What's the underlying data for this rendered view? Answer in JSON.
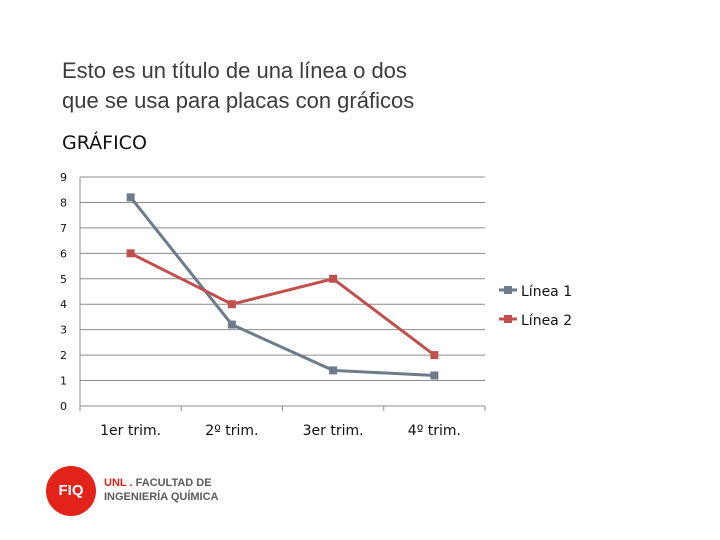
{
  "slide": {
    "title_line1": "Esto es un título de una línea o dos",
    "title_line2": "que se usa para placas con gráficos"
  },
  "chart_data": {
    "type": "line",
    "title": "GRÁFICO",
    "categories": [
      "1er trim.",
      "2º trim.",
      "3er trim.",
      "4º trim."
    ],
    "series": [
      {
        "name": "Línea 1",
        "values": [
          8.2,
          3.2,
          1.4,
          1.2
        ],
        "color": "#6d7b8a"
      },
      {
        "name": "Línea 2",
        "values": [
          6,
          4,
          5,
          2
        ],
        "color": "#c0504d"
      }
    ],
    "ylim": [
      0,
      9
    ],
    "yticks": [
      "0",
      "1",
      "2",
      "3",
      "4",
      "5",
      "6",
      "7",
      "8",
      "9"
    ],
    "grid": true,
    "legend": "right",
    "xlabel": "",
    "ylabel": ""
  },
  "logo": {
    "badge": "FIQ",
    "unl": "UNL",
    "line1": "FACULTAD DE",
    "line2": "INGENIERÍA QUÍMICA",
    "color": "#e2231a"
  }
}
